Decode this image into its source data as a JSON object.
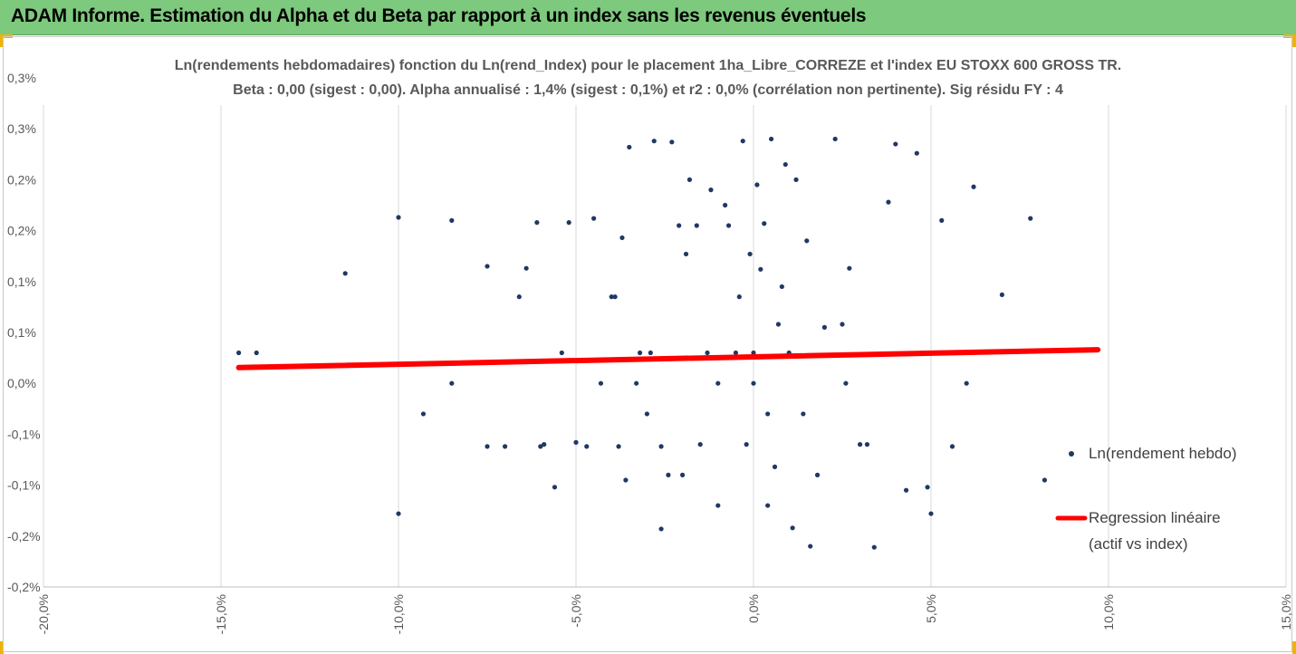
{
  "header": {
    "title": "ADAM Informe. Estimation du Alpha et du Beta par rapport à un index sans les revenus éventuels"
  },
  "chart_data": {
    "type": "scatter",
    "title": "Ln(rendements hebdomadaires) fonction du Ln(rend_Index) pour le placement 1ha_Libre_CORREZE et l'index EU STOXX 600 GROSS TR.",
    "subtitle": "Beta : 0,00 (sigest : 0,00). Alpha annualisé : 1,4% (sigest : 0,1%) et r2 : 0,0% (corrélation non pertinente). Sig résidu FY : 4",
    "xlim": [
      -20,
      15
    ],
    "ylim": [
      -0.2,
      0.3
    ],
    "x_tick_values": [
      -20,
      -15,
      -10,
      -5,
      0,
      5,
      10,
      15
    ],
    "x_tick_labels": [
      "-20,0%",
      "-15,0%",
      "-10,0%",
      "-5,0%",
      "0,0%",
      "5,0%",
      "10,0%",
      "15,0%"
    ],
    "y_tick_values": [
      -0.2,
      -0.15,
      -0.1,
      -0.05,
      0,
      0.05,
      0.1,
      0.15,
      0.2,
      0.25,
      0.3
    ],
    "y_tick_labels": [
      "-0,2%",
      "-0,2%",
      "-0,1%",
      "-0,1%",
      "0,0%",
      "0,1%",
      "0,1%",
      "0,2%",
      "0,2%",
      "0,3%",
      "0,3%"
    ],
    "grid": "vertical",
    "legend": "right",
    "colors": {
      "points": "#203864",
      "regression": "#ff0000",
      "grid": "#d9d9d9"
    },
    "series": [
      {
        "name": "Ln(rendement hebdo)",
        "points": [
          [
            -14.5,
            0.03
          ],
          [
            -14.0,
            0.03
          ],
          [
            -11.5,
            0.108
          ],
          [
            -10.0,
            0.163
          ],
          [
            -10.0,
            -0.128
          ],
          [
            -9.3,
            -0.03
          ],
          [
            -8.5,
            0.16
          ],
          [
            -8.5,
            0.0
          ],
          [
            -7.5,
            0.115
          ],
          [
            -7.5,
            -0.062
          ],
          [
            -7.0,
            -0.062
          ],
          [
            -6.6,
            0.085
          ],
          [
            -6.4,
            0.113
          ],
          [
            -6.1,
            0.158
          ],
          [
            -6.0,
            -0.062
          ],
          [
            -5.9,
            -0.06
          ],
          [
            -5.6,
            -0.102
          ],
          [
            -5.4,
            0.03
          ],
          [
            -5.2,
            0.158
          ],
          [
            -5.0,
            -0.058
          ],
          [
            -4.7,
            -0.062
          ],
          [
            -4.5,
            0.162
          ],
          [
            -4.3,
            0.0
          ],
          [
            -4.0,
            0.085
          ],
          [
            -3.8,
            -0.062
          ],
          [
            -3.7,
            0.143
          ],
          [
            -3.6,
            -0.095
          ],
          [
            -3.5,
            0.232
          ],
          [
            -3.3,
            0.0
          ],
          [
            -3.2,
            0.03
          ],
          [
            -3.0,
            -0.03
          ],
          [
            -2.8,
            0.238
          ],
          [
            -2.6,
            -0.062
          ],
          [
            -2.6,
            -0.143
          ],
          [
            -2.3,
            0.237
          ],
          [
            -2.1,
            0.155
          ],
          [
            -2.0,
            -0.09
          ],
          [
            -1.8,
            0.2
          ],
          [
            -1.6,
            0.155
          ],
          [
            -1.5,
            -0.06
          ],
          [
            -1.3,
            0.03
          ],
          [
            -1.2,
            0.19
          ],
          [
            -1.0,
            -0.12
          ],
          [
            -0.7,
            0.155
          ],
          [
            -0.5,
            0.03
          ],
          [
            -0.3,
            0.238
          ],
          [
            -0.2,
            -0.06
          ],
          [
            0.0,
            0.0
          ],
          [
            0.0,
            0.03
          ],
          [
            0.1,
            0.195
          ],
          [
            0.3,
            0.157
          ],
          [
            0.4,
            -0.12
          ],
          [
            0.5,
            0.24
          ],
          [
            0.6,
            -0.082
          ],
          [
            0.8,
            0.095
          ],
          [
            1.0,
            0.03
          ],
          [
            1.2,
            0.2
          ],
          [
            1.4,
            -0.03
          ],
          [
            1.6,
            -0.16
          ],
          [
            2.0,
            0.055
          ],
          [
            2.3,
            0.24
          ],
          [
            2.6,
            0.0
          ],
          [
            3.0,
            -0.06
          ],
          [
            3.4,
            -0.161
          ],
          [
            3.8,
            0.178
          ],
          [
            4.0,
            0.235
          ],
          [
            4.3,
            -0.105
          ],
          [
            4.6,
            0.226
          ],
          [
            4.9,
            -0.102
          ],
          [
            5.0,
            -0.128
          ],
          [
            5.3,
            0.16
          ],
          [
            5.6,
            -0.062
          ],
          [
            6.0,
            0.0
          ],
          [
            6.2,
            0.193
          ],
          [
            7.0,
            0.087
          ],
          [
            7.8,
            0.162
          ],
          [
            8.2,
            -0.095
          ],
          [
            0.2,
            0.112
          ],
          [
            -0.4,
            0.085
          ],
          [
            0.7,
            0.058
          ],
          [
            -1.0,
            0.0
          ],
          [
            1.5,
            0.14
          ],
          [
            2.7,
            0.113
          ],
          [
            -2.4,
            -0.09
          ],
          [
            3.2,
            -0.06
          ],
          [
            -3.9,
            0.085
          ],
          [
            0.9,
            0.215
          ],
          [
            -0.8,
            0.175
          ],
          [
            1.8,
            -0.09
          ],
          [
            -1.9,
            0.127
          ],
          [
            2.5,
            0.058
          ],
          [
            -2.9,
            0.03
          ],
          [
            0.4,
            -0.03
          ],
          [
            -0.1,
            0.127
          ],
          [
            1.1,
            -0.142
          ]
        ]
      },
      {
        "name": "Regression linéaire",
        "name_line2": "(actif vs index)",
        "line": [
          [
            -14.5,
            0.0155
          ],
          [
            9.7,
            0.033
          ]
        ]
      }
    ]
  }
}
